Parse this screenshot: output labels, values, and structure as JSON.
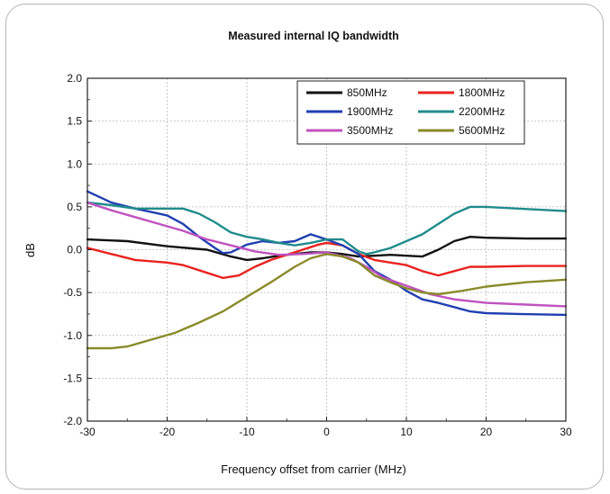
{
  "chart_data": {
    "type": "line",
    "title": "Measured internal IQ bandwidth",
    "xlabel": "Frequency offset from carrier (MHz)",
    "ylabel": "dB",
    "xlim": [
      -30,
      30
    ],
    "ylim": [
      -2.0,
      2.0
    ],
    "x_ticks": [
      -30,
      -20,
      -10,
      0,
      10,
      20,
      30
    ],
    "y_ticks": [
      "2.0",
      "1.5",
      "1.0",
      "0.5",
      "0.0",
      "-0.5",
      "-1.0",
      "-1.5",
      "-2.0"
    ],
    "grid": true,
    "legend_position": "top-right",
    "series": [
      {
        "name": "850MHz",
        "color": "#111111",
        "points": [
          [
            -30,
            0.12
          ],
          [
            -25,
            0.1
          ],
          [
            -20,
            0.04
          ],
          [
            -15,
            0.0
          ],
          [
            -12,
            -0.08
          ],
          [
            -10,
            -0.12
          ],
          [
            -8,
            -0.1
          ],
          [
            -6,
            -0.07
          ],
          [
            -4,
            -0.05
          ],
          [
            -2,
            -0.03
          ],
          [
            0,
            -0.03
          ],
          [
            2,
            -0.05
          ],
          [
            4,
            -0.08
          ],
          [
            6,
            -0.07
          ],
          [
            8,
            -0.06
          ],
          [
            10,
            -0.07
          ],
          [
            12,
            -0.08
          ],
          [
            14,
            0.0
          ],
          [
            16,
            0.1
          ],
          [
            18,
            0.15
          ],
          [
            20,
            0.14
          ],
          [
            25,
            0.13
          ],
          [
            30,
            0.13
          ]
        ]
      },
      {
        "name": "1800MHz",
        "color": "#e8231f",
        "points": [
          [
            -30,
            0.02
          ],
          [
            -27,
            -0.05
          ],
          [
            -24,
            -0.12
          ],
          [
            -20,
            -0.15
          ],
          [
            -18,
            -0.18
          ],
          [
            -15,
            -0.27
          ],
          [
            -13,
            -0.33
          ],
          [
            -11,
            -0.3
          ],
          [
            -9,
            -0.2
          ],
          [
            -7,
            -0.12
          ],
          [
            -5,
            -0.06
          ],
          [
            -3,
            0.0
          ],
          [
            -1,
            0.06
          ],
          [
            0,
            0.08
          ],
          [
            2,
            0.05
          ],
          [
            4,
            -0.05
          ],
          [
            6,
            -0.12
          ],
          [
            8,
            -0.15
          ],
          [
            10,
            -0.18
          ],
          [
            12,
            -0.25
          ],
          [
            14,
            -0.3
          ],
          [
            16,
            -0.25
          ],
          [
            18,
            -0.2
          ],
          [
            20,
            -0.2
          ],
          [
            25,
            -0.19
          ],
          [
            30,
            -0.19
          ]
        ]
      },
      {
        "name": "1900MHz",
        "color": "#1f3fb0",
        "points": [
          [
            -30,
            0.68
          ],
          [
            -27,
            0.55
          ],
          [
            -24,
            0.48
          ],
          [
            -22,
            0.44
          ],
          [
            -20,
            0.4
          ],
          [
            -18,
            0.3
          ],
          [
            -16,
            0.15
          ],
          [
            -14,
            0.02
          ],
          [
            -13,
            -0.04
          ],
          [
            -12,
            -0.03
          ],
          [
            -10,
            0.06
          ],
          [
            -8,
            0.1
          ],
          [
            -6,
            0.08
          ],
          [
            -4,
            0.1
          ],
          [
            -2,
            0.18
          ],
          [
            0,
            0.12
          ],
          [
            2,
            0.05
          ],
          [
            4,
            -0.05
          ],
          [
            6,
            -0.25
          ],
          [
            8,
            -0.35
          ],
          [
            10,
            -0.48
          ],
          [
            12,
            -0.58
          ],
          [
            14,
            -0.62
          ],
          [
            16,
            -0.67
          ],
          [
            18,
            -0.72
          ],
          [
            20,
            -0.74
          ],
          [
            24,
            -0.75
          ],
          [
            30,
            -0.76
          ]
        ]
      },
      {
        "name": "2200MHz",
        "color": "#208b8c",
        "points": [
          [
            -30,
            0.55
          ],
          [
            -27,
            0.52
          ],
          [
            -24,
            0.48
          ],
          [
            -21,
            0.48
          ],
          [
            -18,
            0.48
          ],
          [
            -16,
            0.42
          ],
          [
            -14,
            0.32
          ],
          [
            -12,
            0.2
          ],
          [
            -10,
            0.15
          ],
          [
            -8,
            0.12
          ],
          [
            -6,
            0.08
          ],
          [
            -4,
            0.05
          ],
          [
            -2,
            0.08
          ],
          [
            0,
            0.12
          ],
          [
            2,
            0.12
          ],
          [
            3,
            0.05
          ],
          [
            4,
            -0.02
          ],
          [
            5,
            -0.05
          ],
          [
            6,
            -0.03
          ],
          [
            8,
            0.02
          ],
          [
            10,
            0.1
          ],
          [
            12,
            0.18
          ],
          [
            14,
            0.3
          ],
          [
            16,
            0.42
          ],
          [
            18,
            0.5
          ],
          [
            20,
            0.5
          ],
          [
            24,
            0.48
          ],
          [
            30,
            0.45
          ]
        ]
      },
      {
        "name": "3500MHz",
        "color": "#c052c0",
        "points": [
          [
            -30,
            0.55
          ],
          [
            -27,
            0.46
          ],
          [
            -24,
            0.38
          ],
          [
            -21,
            0.3
          ],
          [
            -18,
            0.22
          ],
          [
            -15,
            0.12
          ],
          [
            -12,
            0.05
          ],
          [
            -9,
            -0.02
          ],
          [
            -6,
            -0.06
          ],
          [
            -3,
            -0.05
          ],
          [
            0,
            -0.03
          ],
          [
            3,
            -0.1
          ],
          [
            5,
            -0.2
          ],
          [
            7,
            -0.32
          ],
          [
            10,
            -0.42
          ],
          [
            13,
            -0.52
          ],
          [
            16,
            -0.58
          ],
          [
            20,
            -0.62
          ],
          [
            25,
            -0.64
          ],
          [
            30,
            -0.66
          ]
        ]
      },
      {
        "name": "5600MHz",
        "color": "#8a8a2a",
        "points": [
          [
            -30,
            -1.15
          ],
          [
            -27,
            -1.15
          ],
          [
            -25,
            -1.13
          ],
          [
            -22,
            -1.05
          ],
          [
            -19,
            -0.97
          ],
          [
            -16,
            -0.85
          ],
          [
            -13,
            -0.72
          ],
          [
            -10,
            -0.55
          ],
          [
            -7,
            -0.38
          ],
          [
            -4,
            -0.2
          ],
          [
            -2,
            -0.1
          ],
          [
            0,
            -0.05
          ],
          [
            2,
            -0.08
          ],
          [
            4,
            -0.15
          ],
          [
            6,
            -0.3
          ],
          [
            8,
            -0.38
          ],
          [
            10,
            -0.45
          ],
          [
            12,
            -0.5
          ],
          [
            14,
            -0.52
          ],
          [
            17,
            -0.48
          ],
          [
            20,
            -0.43
          ],
          [
            25,
            -0.38
          ],
          [
            30,
            -0.35
          ]
        ]
      }
    ]
  }
}
